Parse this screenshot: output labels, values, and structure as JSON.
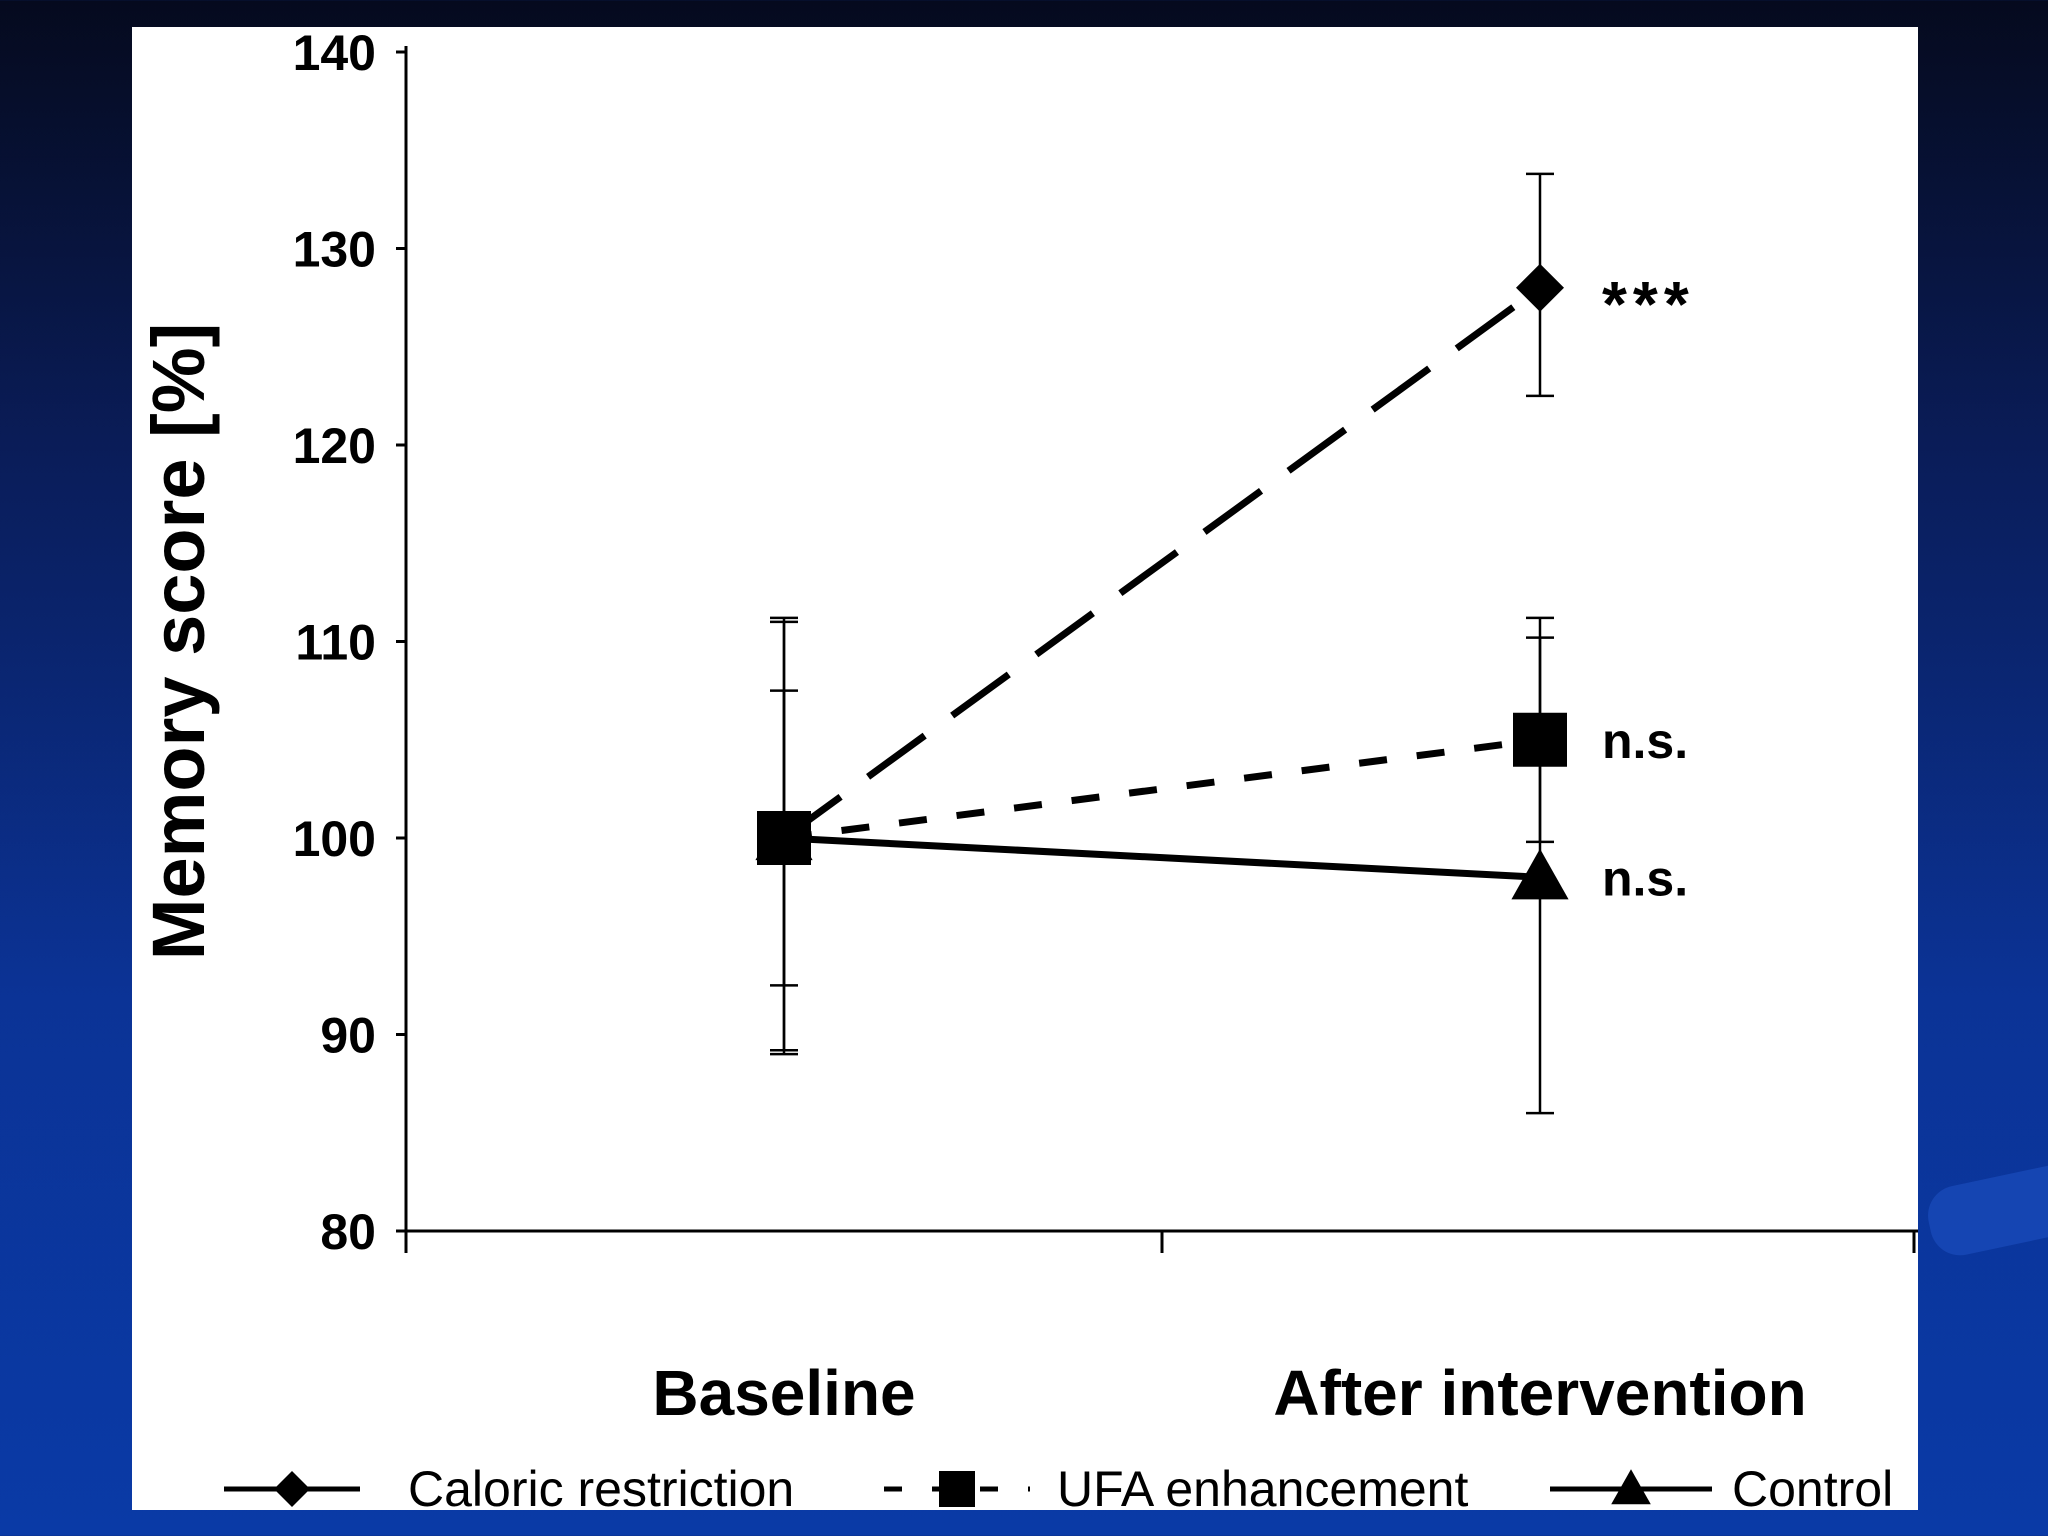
{
  "chart_data": {
    "type": "line",
    "ylabel": "Memory score [%]",
    "xlabel": "",
    "ylim": [
      80,
      140
    ],
    "yticks": [
      80,
      90,
      100,
      110,
      120,
      130,
      140
    ],
    "categories": [
      "Baseline",
      "After intervention"
    ],
    "series": [
      {
        "name": "Caloric restriction",
        "marker": "diamond",
        "line": "long-dash",
        "values": [
          100,
          128
        ],
        "error": [
          [
            89.2,
            111.2
          ],
          [
            122.5,
            133.8
          ]
        ],
        "annotation": "***"
      },
      {
        "name": "UFA enhancement",
        "marker": "square",
        "line": "short-dash",
        "values": [
          100,
          105
        ],
        "error": [
          [
            92.5,
            107.5
          ],
          [
            99.8,
            110.2
          ]
        ],
        "annotation": "n.s."
      },
      {
        "name": "Control",
        "marker": "triangle",
        "line": "solid",
        "values": [
          100,
          98
        ],
        "error": [
          [
            89,
            111
          ],
          [
            86,
            111.2
          ]
        ],
        "annotation": "n.s."
      }
    ],
    "legend": {
      "placement": "bottom",
      "entries": [
        "Caloric restriction",
        "UFA enhancement",
        "Control"
      ]
    }
  },
  "colors": {
    "ink": "#000000",
    "figure_bg": "#ffffff",
    "slide_bg_top": "#050a1e",
    "slide_bg_bottom": "#0a3aa6"
  }
}
